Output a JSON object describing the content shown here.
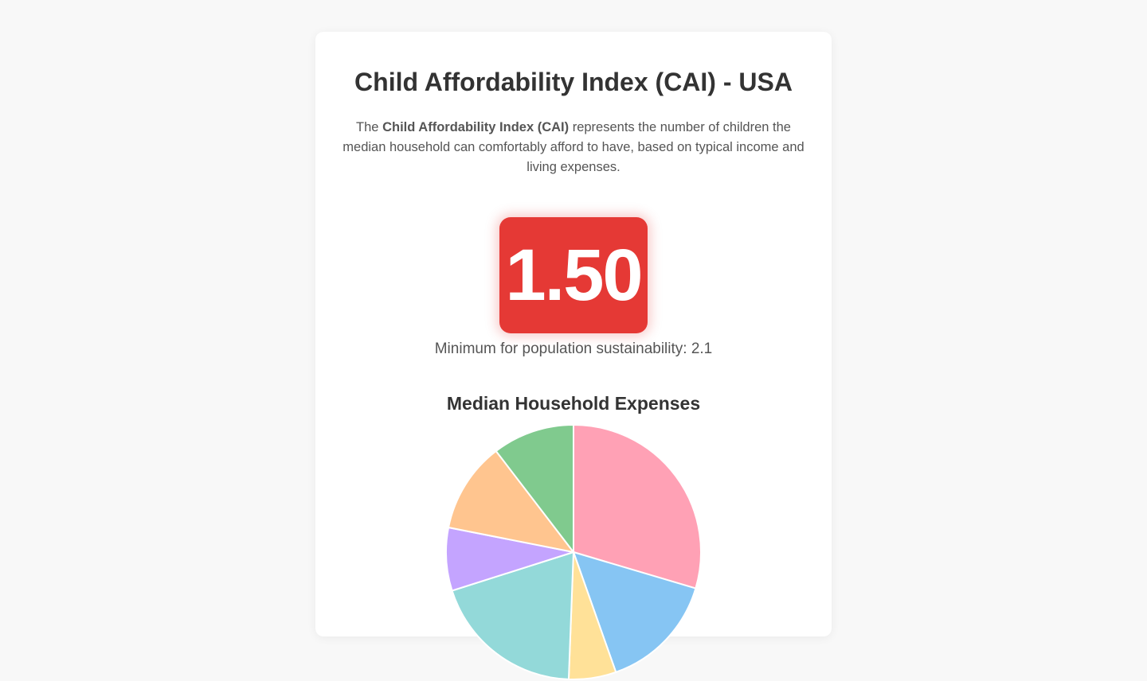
{
  "header": {
    "title": "Child Affordability Index (CAI) - USA",
    "description_prefix": "The ",
    "description_bold": "Child Affordability Index (CAI)",
    "description_suffix": " represents the number of children the median household can comfortably afford to have, based on typical income and living expenses."
  },
  "index": {
    "value": "1.50",
    "threshold_text": "Minimum for population sustainability: 2.1",
    "color": "#e53935"
  },
  "chart_data": {
    "type": "pie",
    "title": "Median Household Expenses",
    "series": [
      {
        "value": 29.6,
        "color": "#ffa1b5"
      },
      {
        "value": 15.0,
        "color": "#86c5f3"
      },
      {
        "value": 6.0,
        "color": "#ffe198"
      },
      {
        "value": 19.5,
        "color": "#93d9d9"
      },
      {
        "value": 8.0,
        "color": "#c4a4ff"
      },
      {
        "value": 11.5,
        "color": "#ffc58f"
      },
      {
        "value": 10.4,
        "color": "#80ca8e"
      }
    ]
  }
}
